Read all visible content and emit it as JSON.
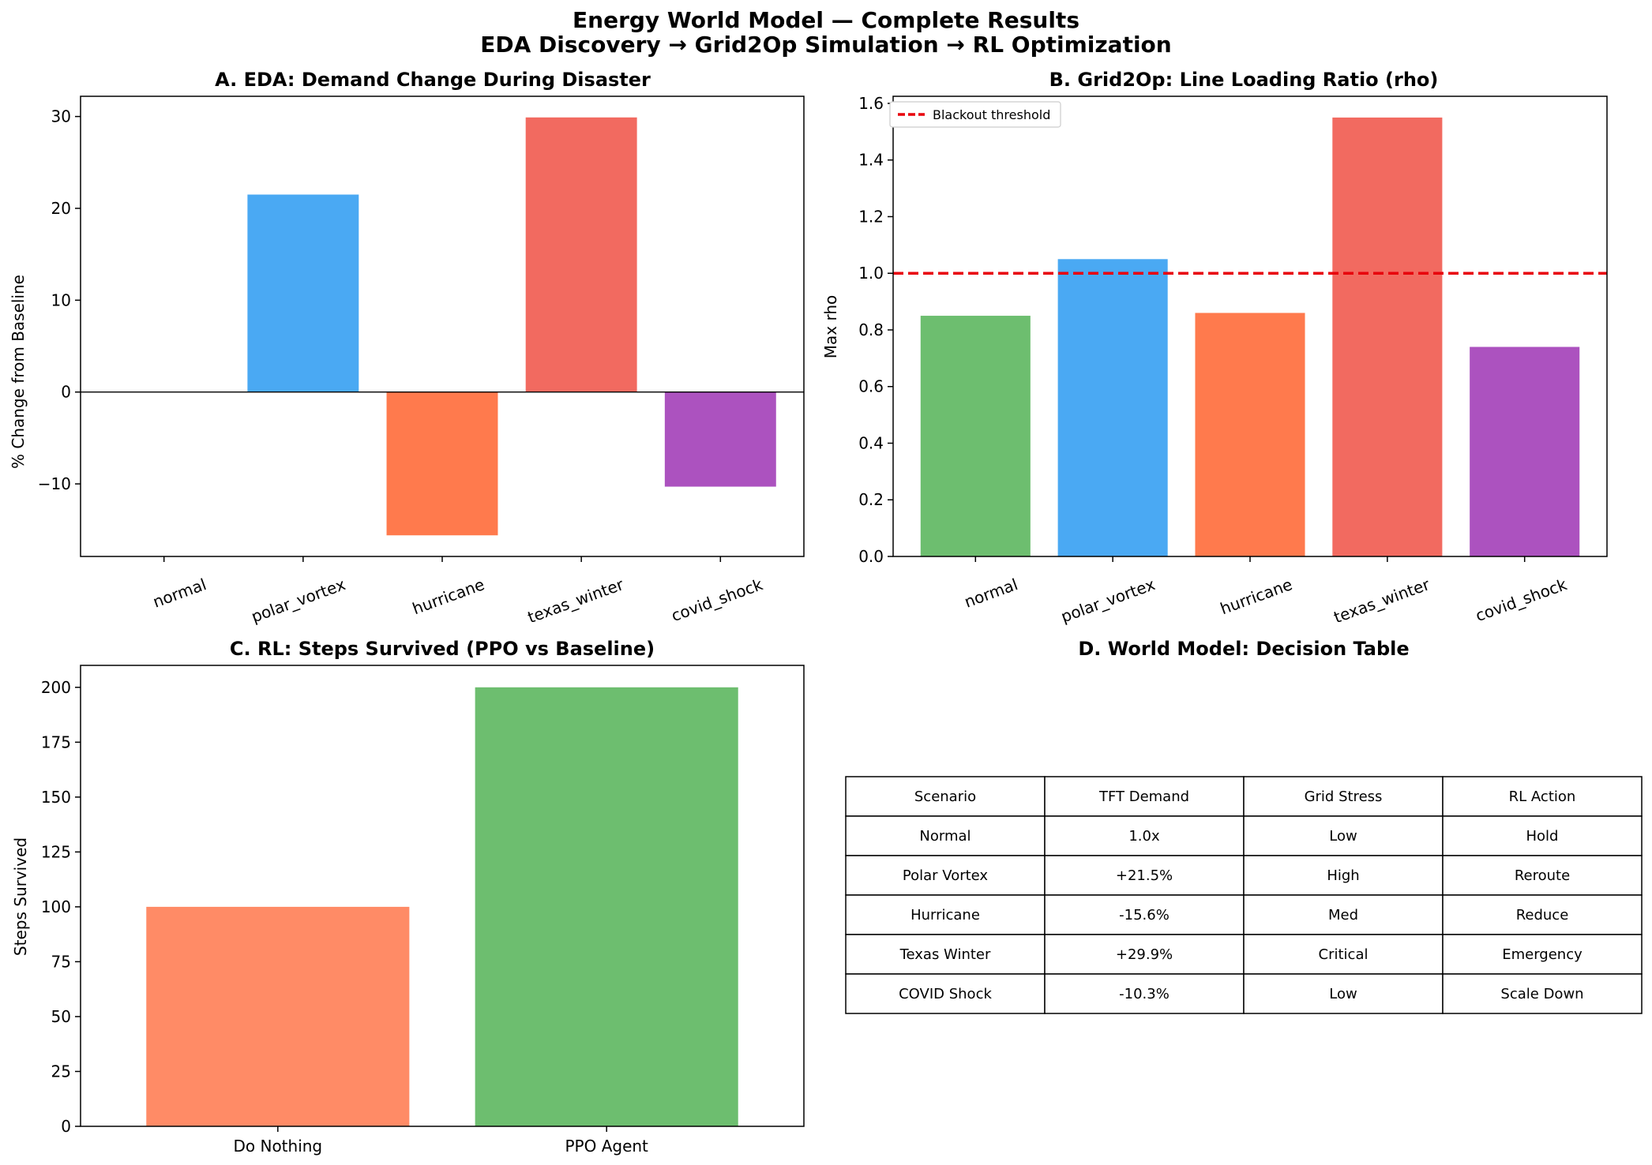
{
  "figure": {
    "title_line1": "Energy World Model — Complete Results",
    "title_line2": "EDA Discovery → Grid2Op Simulation → RL Optimization"
  },
  "chart_data": [
    {
      "panel": "A",
      "type": "bar",
      "title": "A. EDA: Demand Change During Disaster",
      "xlabel": "",
      "ylabel": "% Change from Baseline",
      "categories": [
        "normal",
        "polar_vortex",
        "hurricane",
        "texas_winter",
        "covid_shock"
      ],
      "values": [
        0.0,
        21.5,
        -15.6,
        29.9,
        -10.3
      ],
      "colors": [
        "#6dbe6f",
        "#4aa9f3",
        "#ff7a4d",
        "#f26a60",
        "#ac52bf"
      ],
      "ylim": [
        -17.9,
        32.2
      ],
      "yticks": [
        -10,
        0,
        10,
        20,
        30
      ],
      "ytick_labels": [
        "−10",
        "0",
        "10",
        "20",
        "30"
      ],
      "zero_line": true,
      "grid": false
    },
    {
      "panel": "B",
      "type": "bar",
      "title": "B. Grid2Op: Line Loading Ratio (rho)",
      "xlabel": "",
      "ylabel": "Max rho",
      "categories": [
        "normal",
        "polar_vortex",
        "hurricane",
        "texas_winter",
        "covid_shock"
      ],
      "values": [
        0.85,
        1.05,
        0.86,
        1.55,
        0.74
      ],
      "colors": [
        "#6dbe6f",
        "#4aa9f3",
        "#ff7a4d",
        "#f26a60",
        "#ac52bf"
      ],
      "ylim": [
        0,
        1.625
      ],
      "yticks": [
        0.0,
        0.2,
        0.4,
        0.6,
        0.8,
        1.0,
        1.2,
        1.4,
        1.6
      ],
      "ytick_labels": [
        "0.0",
        "0.2",
        "0.4",
        "0.6",
        "0.8",
        "1.0",
        "1.2",
        "1.4",
        "1.6"
      ],
      "threshold": {
        "value": 1.0,
        "label": "Blackout threshold",
        "color": "#e8000b"
      },
      "legend_position": "top-left",
      "grid": false
    },
    {
      "panel": "C",
      "type": "bar",
      "title": "C. RL: Steps Survived (PPO vs Baseline)",
      "xlabel": "",
      "ylabel": "Steps Survived",
      "categories": [
        "Do Nothing",
        "PPO Agent"
      ],
      "values": [
        100,
        200
      ],
      "colors": [
        "#ff8b66",
        "#6dbe6f"
      ],
      "ylim": [
        0,
        210
      ],
      "yticks": [
        0,
        25,
        50,
        75,
        100,
        125,
        150,
        175,
        200
      ],
      "ytick_labels": [
        "0",
        "25",
        "50",
        "75",
        "100",
        "125",
        "150",
        "175",
        "200"
      ],
      "grid": false
    },
    {
      "panel": "D",
      "type": "table",
      "title": "D. World Model: Decision Table",
      "columns": [
        "Scenario",
        "TFT Demand",
        "Grid Stress",
        "RL Action"
      ],
      "rows": [
        [
          "Normal",
          "1.0x",
          "Low",
          "Hold"
        ],
        [
          "Polar Vortex",
          "+21.5%",
          "High",
          "Reroute"
        ],
        [
          "Hurricane",
          "-15.6%",
          "Med",
          "Reduce"
        ],
        [
          "Texas Winter",
          "+29.9%",
          "Critical",
          "Emergency"
        ],
        [
          "COVID Shock",
          "-10.3%",
          "Low",
          "Scale Down"
        ]
      ]
    }
  ]
}
